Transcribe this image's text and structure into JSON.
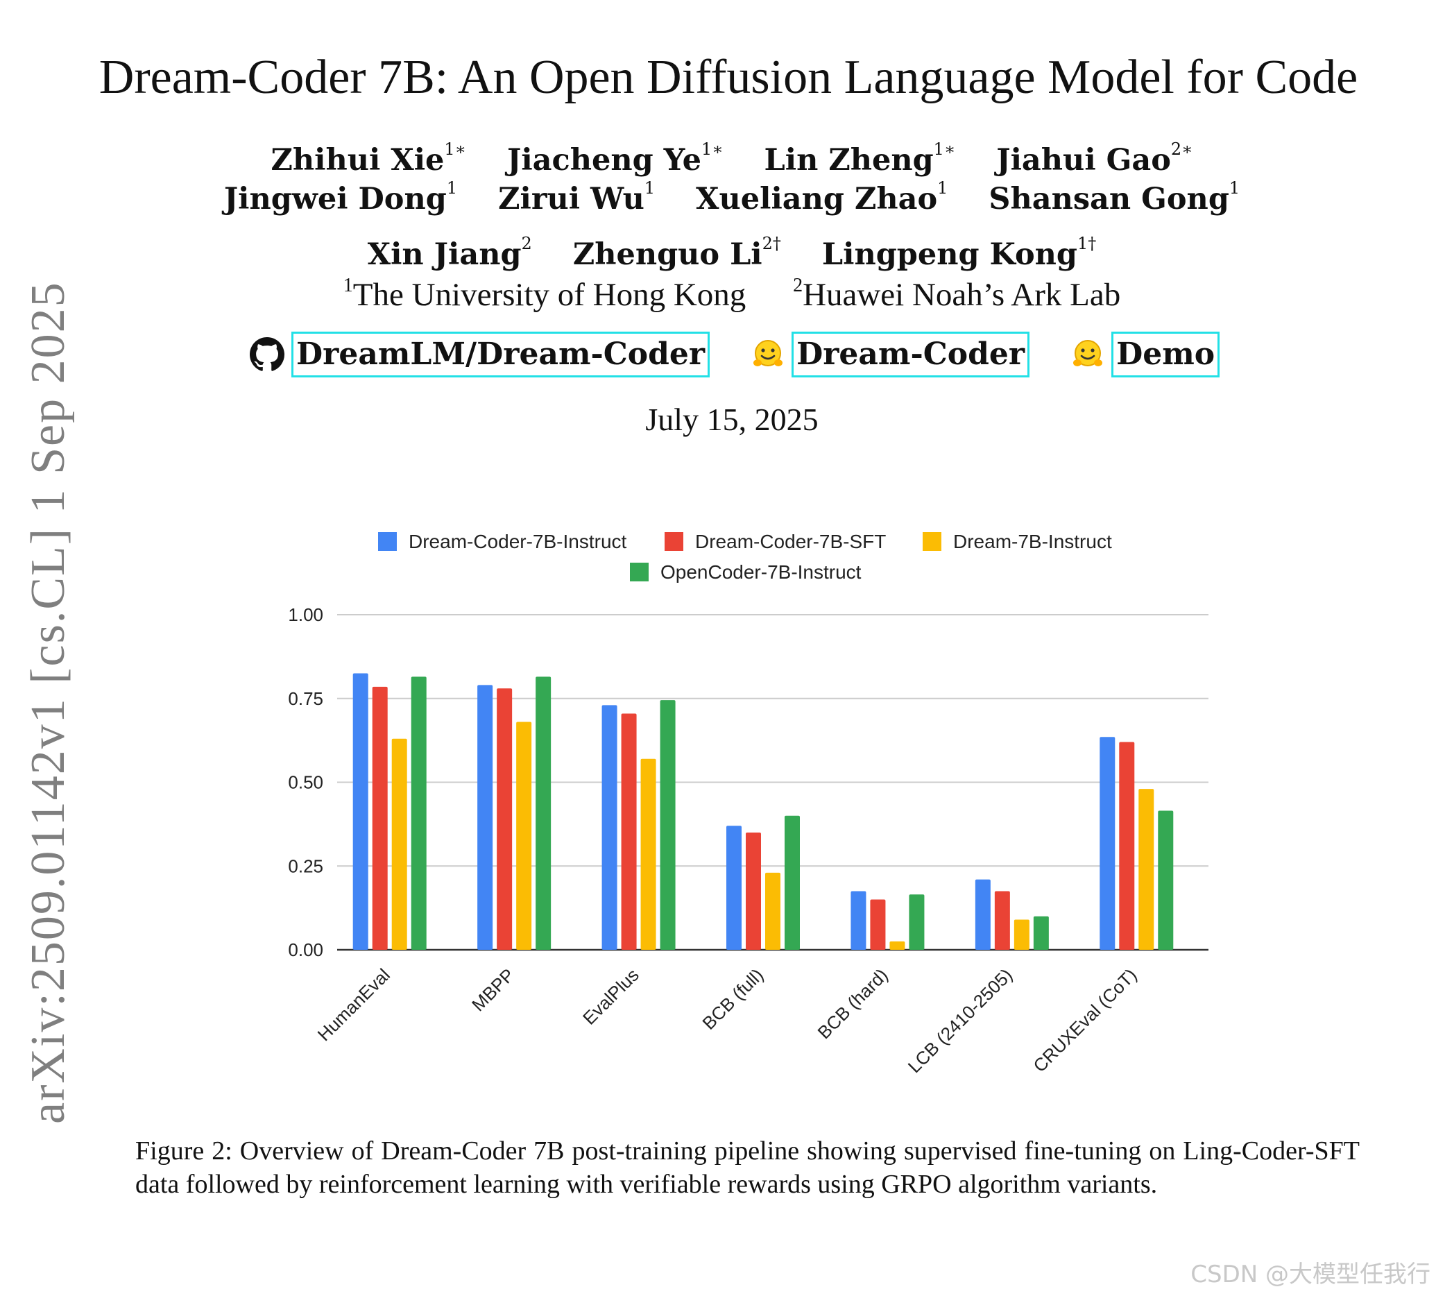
{
  "arxiv_id": "arXiv:2509.01142v1  [cs.CL]  1 Sep 2025",
  "title": "Dream-Coder 7B: An Open Diffusion Language Model for Code",
  "authors": {
    "line1": [
      {
        "name": "Zhihui Xie",
        "sup": "1∗"
      },
      {
        "name": "Jiacheng Ye",
        "sup": "1∗"
      },
      {
        "name": "Lin Zheng",
        "sup": "1∗"
      },
      {
        "name": "Jiahui Gao",
        "sup": "2∗"
      }
    ],
    "line2": [
      {
        "name": "Jingwei Dong",
        "sup": "1"
      },
      {
        "name": "Zirui Wu",
        "sup": "1"
      },
      {
        "name": "Xueliang Zhao",
        "sup": "1"
      },
      {
        "name": "Shansan Gong",
        "sup": "1"
      }
    ],
    "line3": [
      {
        "name": "Xin Jiang",
        "sup": "2"
      },
      {
        "name": "Zhenguo Li",
        "sup": "2†"
      },
      {
        "name": "Lingpeng Kong",
        "sup": "1†"
      }
    ]
  },
  "affiliations": [
    {
      "sup": "1",
      "name": "The University of Hong Kong"
    },
    {
      "sup": "2",
      "name": "Huawei Noah’s Ark Lab"
    }
  ],
  "links": {
    "github": "DreamLM/Dream-Coder",
    "model": "Dream-Coder",
    "demo": "Demo"
  },
  "date": "July 15, 2025",
  "chart_data": {
    "type": "bar",
    "categories": [
      "HumanEval",
      "MBPP",
      "EvalPlus",
      "BCB (full)",
      "BCB (hard)",
      "LCB (2410-2505)",
      "CRUXEval (CoT)"
    ],
    "series": [
      {
        "name": "Dream-Coder-7B-Instruct",
        "color": "#4285f4",
        "values": [
          0.825,
          0.79,
          0.73,
          0.37,
          0.175,
          0.21,
          0.635
        ]
      },
      {
        "name": "Dream-Coder-7B-SFT",
        "color": "#ea4335",
        "values": [
          0.785,
          0.78,
          0.705,
          0.35,
          0.15,
          0.175,
          0.62
        ]
      },
      {
        "name": "Dream-7B-Instruct",
        "color": "#fbbc04",
        "values": [
          0.63,
          0.68,
          0.57,
          0.23,
          0.025,
          0.09,
          0.48
        ]
      },
      {
        "name": "OpenCoder-7B-Instruct",
        "color": "#34a853",
        "values": [
          0.815,
          0.815,
          0.745,
          0.4,
          0.165,
          0.1,
          0.415
        ]
      }
    ],
    "yticks": [
      "0.00",
      "0.25",
      "0.50",
      "0.75",
      "1.00"
    ],
    "ylim": [
      0,
      1
    ],
    "grid": true,
    "legend_position": "top-center"
  },
  "caption": "Figure 2:  Overview of Dream-Coder 7B post-training pipeline showing supervised fine-tuning on Ling-Coder-SFT data followed by reinforcement learning with verifiable rewards using GRPO algorithm variants.",
  "watermark": "CSDN @大模型任我行"
}
